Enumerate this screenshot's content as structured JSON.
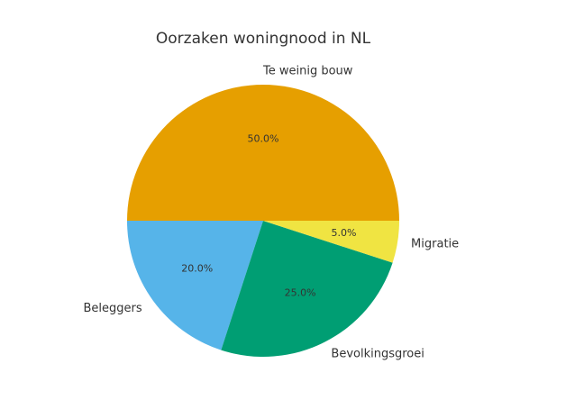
{
  "chart_data": {
    "type": "pie",
    "title": "Oorzaken woningnood in NL",
    "categories": [
      "Te weinig bouw",
      "Beleggers",
      "Bevolkingsgroei",
      "Migratie"
    ],
    "values": [
      50,
      20,
      25,
      5
    ],
    "value_labels": [
      "50.0%",
      "20.0%",
      "25.0%",
      "5.0%"
    ],
    "colors": [
      "#E69F00",
      "#56B4E9",
      "#009E73",
      "#F0E442"
    ]
  }
}
